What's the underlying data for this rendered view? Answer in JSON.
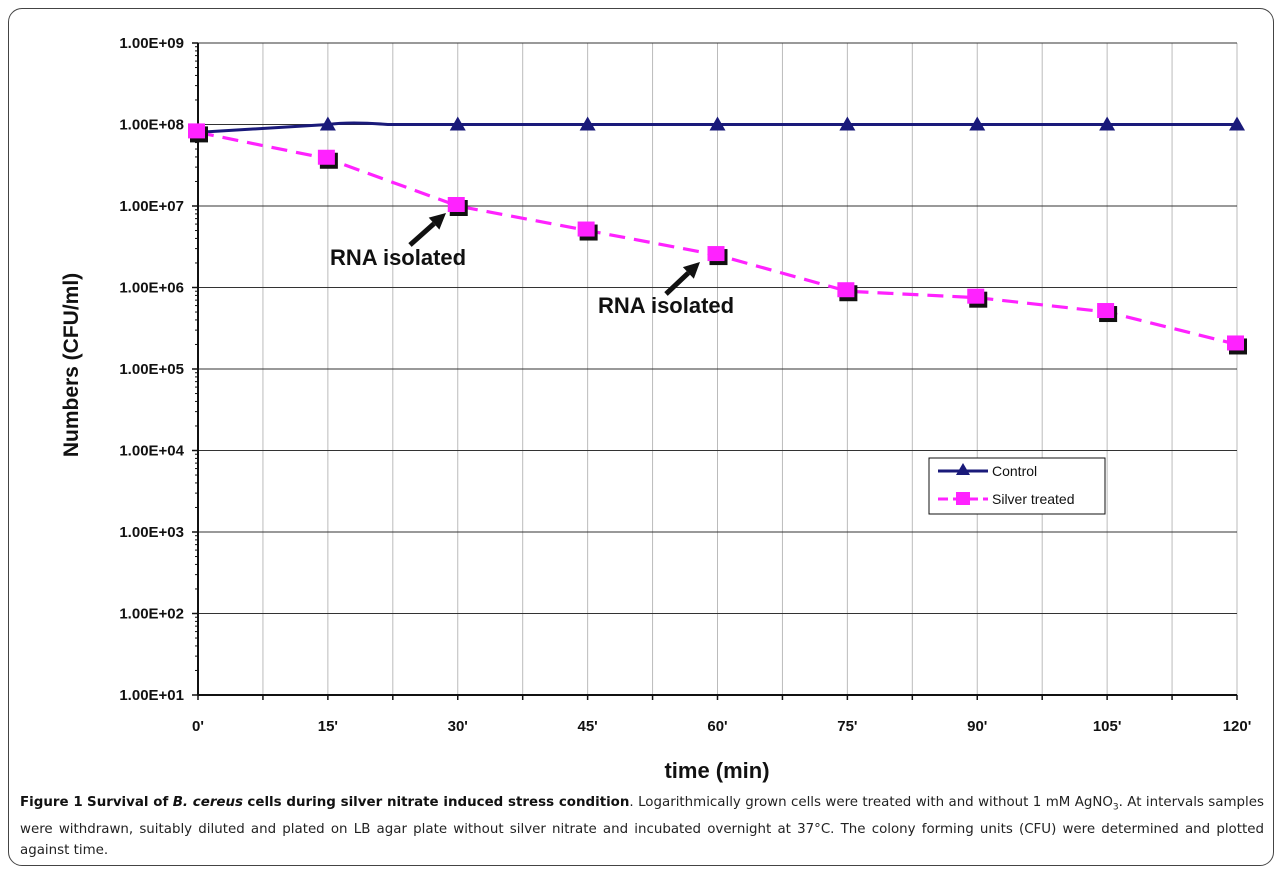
{
  "chart_data": {
    "type": "line",
    "xlabel": "time (min)",
    "ylabel": "Numbers (CFU/ml)",
    "yscale": "log",
    "ylim": [
      10,
      1000000000
    ],
    "y_tick_labels": [
      "1.00E+01",
      "1.00E+02",
      "1.00E+03",
      "1.00E+04",
      "1.00E+05",
      "1.00E+06",
      "1.00E+07",
      "1.00E+08",
      "1.00E+09"
    ],
    "categories": [
      "0'",
      "15'",
      "30'",
      "45'",
      "60'",
      "75'",
      "90'",
      "105'",
      "120'"
    ],
    "x_values_min": [
      0,
      15,
      30,
      45,
      60,
      75,
      90,
      105,
      120
    ],
    "grid": true,
    "legend_position": "right",
    "series": [
      {
        "name": "Control",
        "color": "#1a1a7a",
        "marker": "triangle",
        "style": "solid",
        "values": [
          80000000,
          100000000,
          100000000,
          100000000,
          100000000,
          100000000,
          100000000,
          100000000,
          100000000
        ]
      },
      {
        "name": "Silver treated",
        "color": "#ff22ff",
        "marker": "square",
        "style": "dashed",
        "values": [
          80000000,
          38000000,
          10000000,
          5000000,
          2500000,
          900000,
          750000,
          500000,
          200000
        ]
      }
    ],
    "annotations": [
      {
        "text": "RNA isolated",
        "x": 30,
        "y": 10000000
      },
      {
        "text": "RNA isolated",
        "x": 60,
        "y": 2500000
      }
    ]
  },
  "caption": {
    "figure_label": "Figure 1",
    "title_part1": "Survival of",
    "title_species": "B. cereus",
    "title_part2": "cells during silver nitrate induced stress condition",
    "text_part1": ". Logarithmically grown cells were treated with and without 1 mM AgNO",
    "subscript": "3",
    "text_part2": ". At intervals samples were withdrawn, suitably diluted and plated on LB agar plate without silver nitrate and incubated overnight at 37°C. The colony forming units (CFU) were determined and plotted against time."
  }
}
